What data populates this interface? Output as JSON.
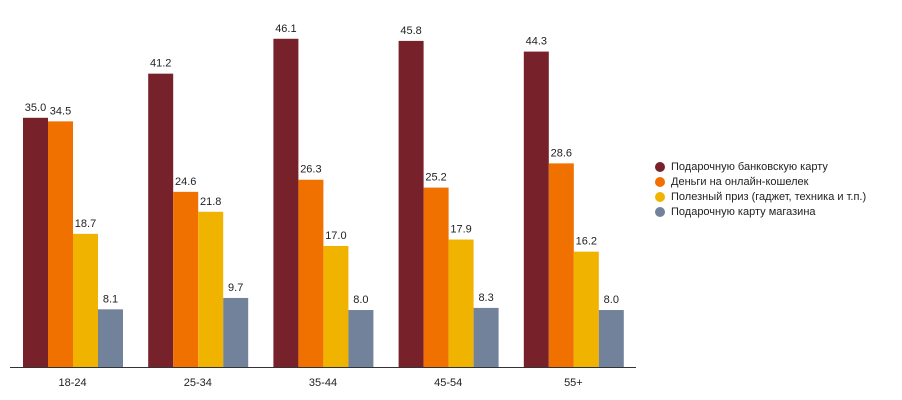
{
  "chart_data": {
    "type": "bar",
    "title": "",
    "xlabel": "",
    "ylabel": "",
    "ylim": [
      0,
      50
    ],
    "grid": false,
    "legend_position": "right",
    "categories": [
      "18-24",
      "25-34",
      "35-44",
      "45-54",
      "55+"
    ],
    "series": [
      {
        "name": "Подарочную банковскую карту",
        "color": "#77212a",
        "values": [
          35.0,
          41.2,
          46.1,
          45.8,
          44.3
        ],
        "labels": [
          "35.0",
          "41.2",
          "46.1",
          "45.8",
          "44.3"
        ]
      },
      {
        "name": "Деньги на онлайн-кошелек",
        "color": "#f07000",
        "values": [
          34.5,
          24.6,
          26.3,
          25.2,
          28.6
        ],
        "labels": [
          "34.5",
          "24.6",
          "26.3",
          "25.2",
          "28.6"
        ]
      },
      {
        "name": "Полезный приз (гаджет, техника и т.п.)",
        "color": "#f0b400",
        "values": [
          18.7,
          21.8,
          17.0,
          17.9,
          16.2
        ],
        "labels": [
          "18.7",
          "21.8",
          "17.0",
          "17.9",
          "16.2"
        ]
      },
      {
        "name": "Подарочную карту магазина",
        "color": "#72829a",
        "values": [
          8.1,
          9.7,
          8.0,
          8.3,
          8.0
        ],
        "labels": [
          "8.1",
          "9.7",
          "8.0",
          "8.3",
          "8.0"
        ]
      }
    ]
  }
}
